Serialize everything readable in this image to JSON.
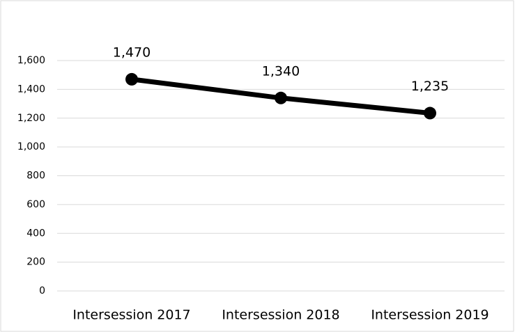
{
  "chart_data": {
    "type": "line",
    "categories": [
      "Intersession 2017",
      "Intersession 2018",
      "Intersession 2019"
    ],
    "values": [
      1470,
      1340,
      1235
    ],
    "value_labels": [
      "1,470",
      "1,340",
      "1,235"
    ],
    "color": "#000000",
    "ylim": [
      0,
      1600
    ],
    "yticks": [
      0,
      200,
      400,
      600,
      800,
      {
        "value": 1000,
        "label": "1,000"
      },
      {
        "value": 1200,
        "label": "1,200"
      },
      {
        "value": 1400,
        "label": "1,400"
      },
      {
        "value": 1600,
        "label": "1,600"
      }
    ],
    "grid": true
  }
}
